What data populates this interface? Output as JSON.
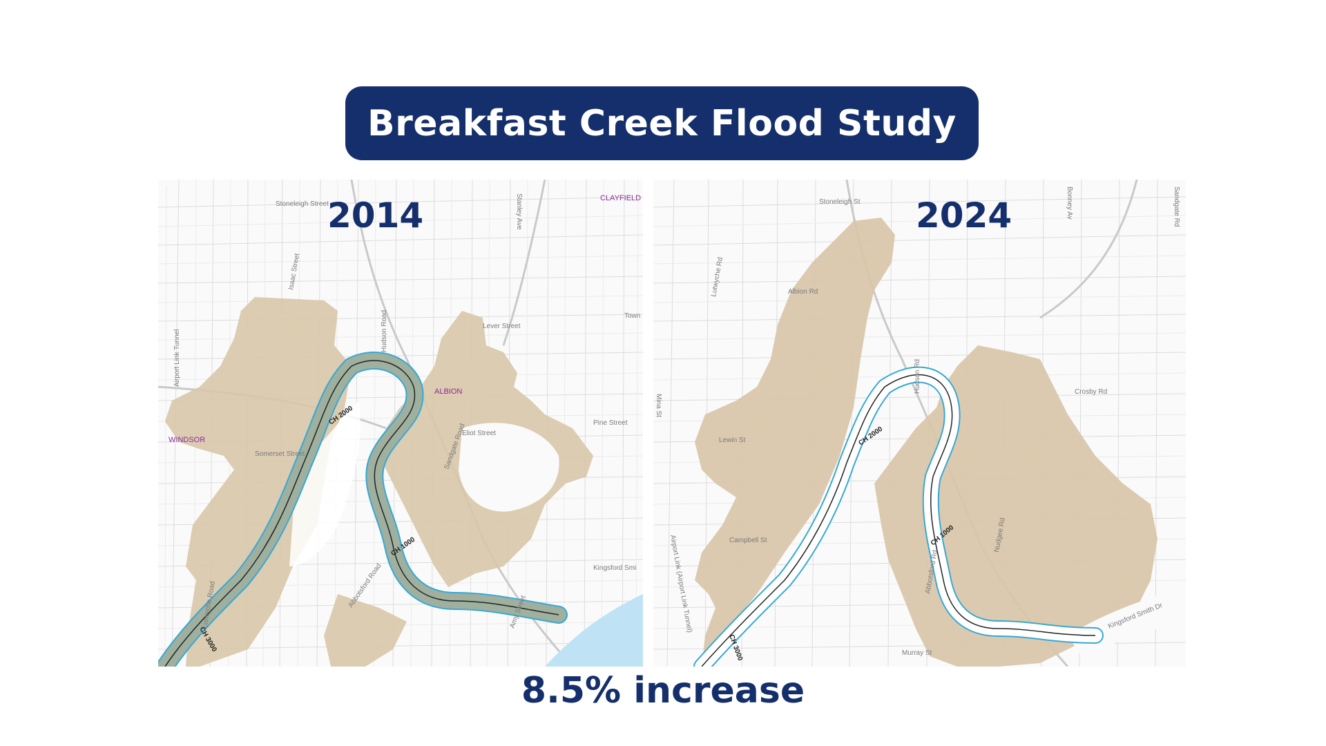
{
  "title": "Breakfast Creek Flood Study",
  "summary": "8.5% increase",
  "colors": {
    "banner": "#142f6b",
    "flood": "#d8c6a8",
    "creek_outline": "#35a8d6",
    "water": "#bfe3f5",
    "suburb_label": "#8a2a9a"
  },
  "maps": {
    "left": {
      "year": "2014",
      "suburbs": [
        "CLAYFIELD",
        "ALBION",
        "WINDSOR"
      ],
      "streets": [
        "Stoneleigh Street",
        "Stanley Ave",
        "Isaac Street",
        "Airport Link Tunnel",
        "Hudson Road",
        "Lever Street",
        "Town",
        "Somerset Street",
        "Eliot Street",
        "Pine Street",
        "Sandgate Road",
        "Abbotsford Road",
        "Amy Street",
        "Kingsford Smi",
        "Lutwyche Road"
      ],
      "chainages": [
        "CH 2000",
        "CH 1000",
        "CH 3000"
      ]
    },
    "right": {
      "year": "2024",
      "streets": [
        "Stoneleigh St",
        "Bonney Av",
        "Sandgate Rd",
        "Lutwyche Rd",
        "Albion Rd",
        "Hudson Rd",
        "Crosby Rd",
        "Lewin St",
        "Campbell St",
        "Airport Link (Airport Link Tunnel)",
        "Abbotsford Rd",
        "Nudgee Rd",
        "Kingsford Smith Dr",
        "Murray St",
        "Mina St"
      ],
      "chainages": [
        "CH 2000",
        "CH 1000",
        "CH 3000"
      ]
    }
  }
}
